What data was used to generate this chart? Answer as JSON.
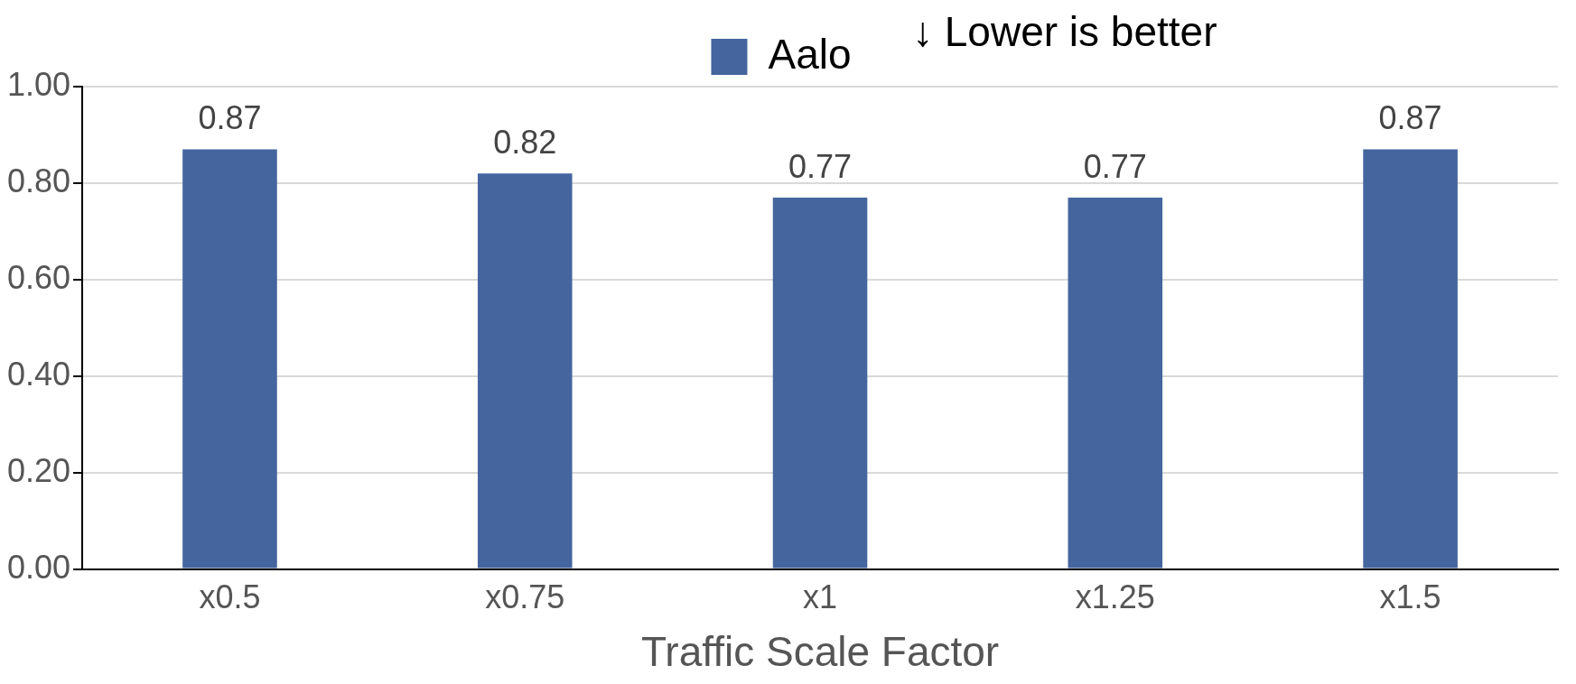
{
  "chart_data": {
    "type": "bar",
    "xlabel": "Traffic Scale Factor",
    "categories": [
      "x0.5",
      "x0.75",
      "x1",
      "x1.25",
      "x1.5"
    ],
    "series": [
      {
        "name": "Aalo",
        "color": "#44659e",
        "values": [
          0.87,
          0.82,
          0.77,
          0.77,
          0.87
        ]
      }
    ],
    "ylim": [
      0,
      1
    ],
    "yticks": [
      {
        "value": 0,
        "label": "0.00"
      },
      {
        "value": 0.2,
        "label": "0.20"
      },
      {
        "value": 0.4,
        "label": "0.40"
      },
      {
        "value": 0.6,
        "label": "0.60"
      },
      {
        "value": 0.8,
        "label": "0.80"
      },
      {
        "value": 1,
        "label": "1.00"
      }
    ],
    "grid": "y",
    "legend": "top",
    "data_labels": true,
    "annotations": [
      "↓ Lower is better"
    ]
  }
}
